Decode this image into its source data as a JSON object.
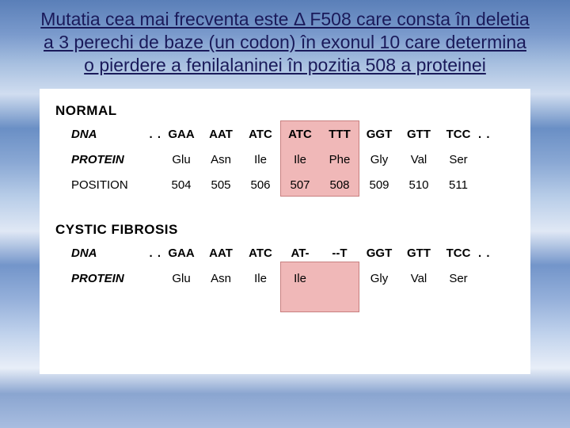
{
  "title": "Mutatia cea mai frecventa este Δ F508 care consta în deletia a 3 perechi de baze (un codon) în exonul 10 care determina o pierdere a fenilalaninei în pozitia 508 a proteinei",
  "colors": {
    "title_text": "#1a1a5a",
    "highlight_fill": "#f0b8b8",
    "highlight_border": "#c88080",
    "figure_bg": "#ffffff",
    "text": "#000000"
  },
  "normal": {
    "section": "NORMAL",
    "row_labels": {
      "dna": "DNA",
      "protein": "PROTEIN",
      "position": "POSITION"
    },
    "dna": [
      "GAA",
      "AAT",
      "ATC",
      "ATC",
      "TTT",
      "GGT",
      "GTT",
      "TCC"
    ],
    "protein": [
      "Glu",
      "Asn",
      "Ile",
      "Ile",
      "Phe",
      "Gly",
      "Val",
      "Ser"
    ],
    "position": [
      "504",
      "505",
      "506",
      "507",
      "508",
      "509",
      "510",
      "511"
    ],
    "highlight_cols": [
      3,
      4
    ]
  },
  "cf": {
    "section": "CYSTIC FIBROSIS",
    "row_labels": {
      "dna": "DNA",
      "protein": "PROTEIN"
    },
    "dna": [
      "GAA",
      "AAT",
      "ATC",
      "AT-",
      "--T",
      "GGT",
      "GTT",
      "TCC"
    ],
    "protein": [
      "Glu",
      "Asn",
      "Ile",
      "Ile",
      "",
      "Gly",
      "Val",
      "Ser"
    ],
    "highlight_cols": [
      3,
      4
    ]
  },
  "leading_dots": ". .",
  "trailing_dots": ". ."
}
